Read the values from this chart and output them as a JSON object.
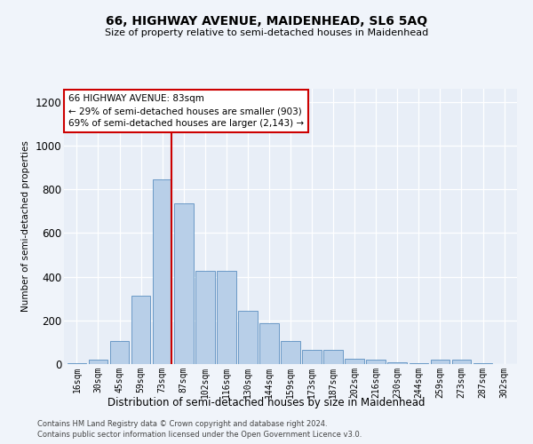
{
  "title": "66, HIGHWAY AVENUE, MAIDENHEAD, SL6 5AQ",
  "subtitle": "Size of property relative to semi-detached houses in Maidenhead",
  "xlabel": "Distribution of semi-detached houses by size in Maidenhead",
  "ylabel": "Number of semi-detached properties",
  "footer1": "Contains HM Land Registry data © Crown copyright and database right 2024.",
  "footer2": "Contains public sector information licensed under the Open Government Licence v3.0.",
  "categories": [
    "16sqm",
    "30sqm",
    "45sqm",
    "59sqm",
    "73sqm",
    "87sqm",
    "102sqm",
    "116sqm",
    "130sqm",
    "144sqm",
    "159sqm",
    "173sqm",
    "187sqm",
    "202sqm",
    "216sqm",
    "230sqm",
    "244sqm",
    "259sqm",
    "273sqm",
    "287sqm",
    "302sqm"
  ],
  "values": [
    5,
    20,
    105,
    315,
    845,
    735,
    425,
    425,
    245,
    185,
    105,
    65,
    65,
    25,
    20,
    10,
    5,
    20,
    20,
    5,
    0
  ],
  "bar_color": "#b8cfe8",
  "bar_edge_color": "#5a8fc0",
  "annotation_title": "66 HIGHWAY AVENUE: 83sqm",
  "annotation_line1": "← 29% of semi-detached houses are smaller (903)",
  "annotation_line2": "69% of semi-detached houses are larger (2,143) →",
  "vline_color": "#cc0000",
  "annotation_box_facecolor": "#ffffff",
  "annotation_box_edgecolor": "#cc0000",
  "ylim": [
    0,
    1260
  ],
  "yticks": [
    0,
    200,
    400,
    600,
    800,
    1000,
    1200
  ],
  "plot_bg_color": "#e8eef7",
  "fig_bg_color": "#f0f4fa",
  "vline_x": 4.45
}
